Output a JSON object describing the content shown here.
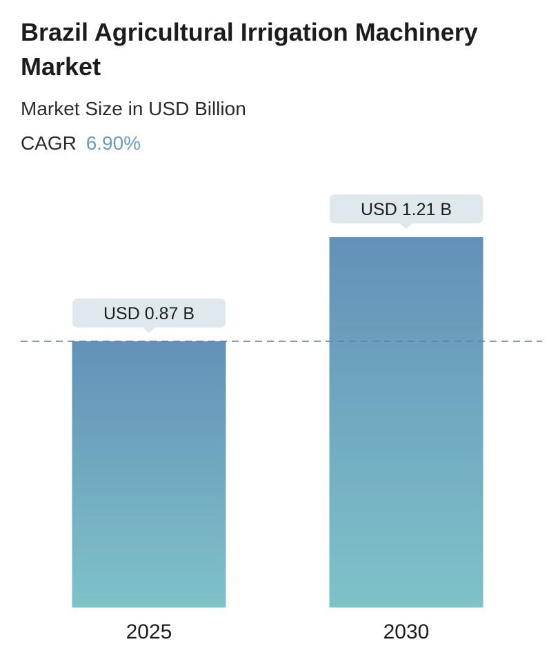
{
  "header": {
    "title": "Brazil Agricultural Irrigation Machinery Market",
    "subtitle": "Market Size in USD Billion",
    "cagr_label": "CAGR",
    "cagr_value": "6.90%"
  },
  "colors": {
    "bar_top": "#6391b8",
    "bar_bottom": "#7fc2c9",
    "callout_bg": "#dfe8ec",
    "dashed_line": "#5d83a3",
    "accent": "#6b9cc0"
  },
  "chart_data": {
    "type": "bar",
    "title": "Brazil Agricultural Irrigation Machinery Market",
    "subtitle": "Market Size in USD Billion",
    "categories": [
      "2025",
      "2030"
    ],
    "values": [
      0.87,
      1.21
    ],
    "data_labels": [
      "USD 0.87 B",
      "USD 1.21 B"
    ],
    "reference_line": 0.87,
    "ylim": [
      0,
      1.21
    ],
    "grid": false,
    "legend": "none"
  }
}
